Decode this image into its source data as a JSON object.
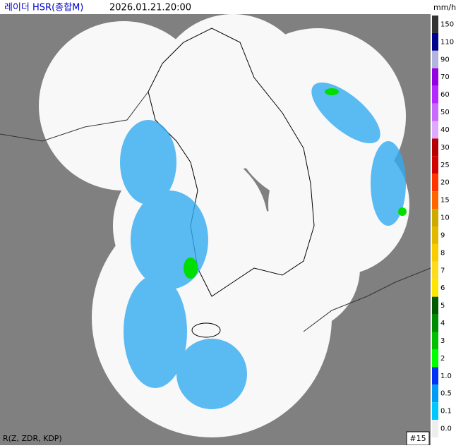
{
  "header": {
    "title": "레이더 HSR(종합M)",
    "time": "2026.01.21.20:00"
  },
  "legend": {
    "unit": "mm/h",
    "items": [
      {
        "label": "150",
        "color": "#333333"
      },
      {
        "label": "110",
        "color": "#000390"
      },
      {
        "label": "90",
        "color": "#b3b4de"
      },
      {
        "label": "70",
        "color": "#9300e4"
      },
      {
        "label": "60",
        "color": "#b329ff"
      },
      {
        "label": "50",
        "color": "#c969ff"
      },
      {
        "label": "40",
        "color": "#dfa9ff"
      },
      {
        "label": "30",
        "color": "#b40000"
      },
      {
        "label": "25",
        "color": "#d20000"
      },
      {
        "label": "20",
        "color": "#ff3300"
      },
      {
        "label": "15",
        "color": "#ff6600"
      },
      {
        "label": "10",
        "color": "#ccaa00"
      },
      {
        "label": "9",
        "color": "#e0b900"
      },
      {
        "label": "8",
        "color": "#f9cd00"
      },
      {
        "label": "7",
        "color": "#ffdc1f"
      },
      {
        "label": "6",
        "color": "#ffe600"
      },
      {
        "label": "5",
        "color": "#005a00"
      },
      {
        "label": "4",
        "color": "#008c00"
      },
      {
        "label": "3",
        "color": "#00be00"
      },
      {
        "label": "2",
        "color": "#00ff00"
      },
      {
        "label": "1.0",
        "color": "#0033f5"
      },
      {
        "label": "0.5",
        "color": "#009bf5"
      },
      {
        "label": "0.1",
        "color": "#00c8ff"
      },
      {
        "label": "0.0",
        "color": "#eeeeee"
      }
    ]
  },
  "footer": {
    "method": "R(Z, ZDR, KDP)",
    "page": "#15"
  }
}
